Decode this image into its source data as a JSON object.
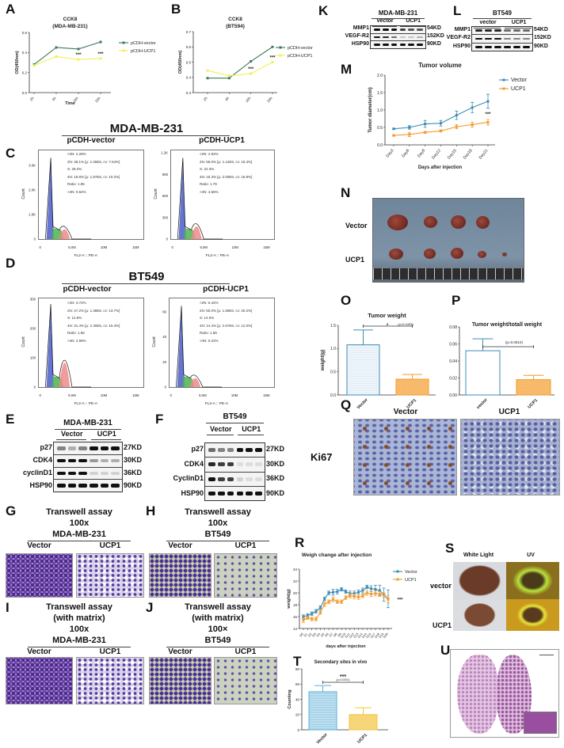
{
  "panel_labels": {
    "A": "A",
    "B": "B",
    "C": "C",
    "D": "D",
    "E": "E",
    "F": "F",
    "G": "G",
    "H": "H",
    "I": "I",
    "J": "J",
    "K": "K",
    "L": "L",
    "M": "M",
    "N": "N",
    "O": "O",
    "P": "P",
    "Q": "Q",
    "R": "R",
    "S": "S",
    "T": "T",
    "U": "U"
  },
  "flow": {
    "C": {
      "title": "MDA-MB-231",
      "xlabel": "FL2-A :: PE-A",
      "ylabel": "Count",
      "xticks": [
        "0",
        "5.0M",
        "10M",
        "15M"
      ],
      "left": {
        "subtitle": "pCDH-vector",
        "yticks": [
          "0",
          "1.0K",
          "2.0K",
          "3.0K"
        ],
        "stats": [
          "<2N: 2.28%",
          "2N: 48.1%   [μ: 1.06E6, cv: 7.64%]",
          "S: 29.2%",
          "4N: 19.8%   [μ: 1.97E6, cv: 10.2%]",
          "Ratio: 1.85",
          ">4N: 0.64%"
        ]
      },
      "right": {
        "subtitle": "pCDH-UCP1",
        "yticks": [
          "0",
          "300",
          "600",
          "900",
          "1.2K"
        ],
        "stats": [
          "<2N: 2.92%",
          "2N: 55.0%   [μ: 1.12E6, cv: 15.4%]",
          "S: 22.3%",
          "4N: 16.3%   [μ: 2.00E6, cv: 18.9%]",
          "Ratio: 1.79",
          ">4N: 3.56%"
        ]
      }
    },
    "D": {
      "title": "BT549",
      "xlabel": "FL2-A :: PE-A",
      "ylabel": "Count",
      "xticks": [
        "0",
        "5.0M",
        "10M",
        "15M"
      ],
      "left": {
        "subtitle": "pCDH-vector",
        "yticks": [
          "0",
          "100",
          "200",
          "300"
        ],
        "stats": [
          "<2N: 3.72%",
          "2N: 47.2%   [μ: 1.38E6, cv: 13.7%]",
          "S: 12.8%",
          "4N: 31.4%   [μ: 2.30E6, cv: 16.4%]",
          "Ratio: 1.66",
          ">4N: 4.99%"
        ]
      },
      "right": {
        "subtitle": "pCDH-UCP1",
        "yticks": [
          "0",
          "20",
          "40",
          "60"
        ],
        "stats": [
          "<2N: 6.44%",
          "2N: 60.0%   [μ: 1.59E6, cv: 20.2%]",
          "S: 14.0%",
          "4N: 14.4%   [μ: 2.67E6, cv: 12.0%]",
          "Ratio: 1.68",
          ">4N: 5.22%"
        ]
      }
    }
  },
  "blots": {
    "E": {
      "title": "MDA-MB-231",
      "groups": [
        "Vector",
        "UCP1"
      ],
      "proteins": [
        "p27",
        "CDK4",
        "cyclinD1",
        "HSP90"
      ],
      "sizes": [
        "27KD",
        "30KD",
        "36KD",
        "90KD"
      ]
    },
    "F": {
      "title": "BT549",
      "groups": [
        "Vector",
        "UCP1"
      ],
      "proteins": [
        "p27",
        "CDK4",
        "CyclinD1",
        "HSP90"
      ],
      "sizes": [
        "27KD",
        "30KD",
        "36KD",
        "90KD"
      ]
    },
    "K": {
      "title": "MDA-MB-231",
      "groups": [
        "vector",
        "UCP1"
      ],
      "proteins": [
        "MMP1",
        "VEGF-R2",
        "HSP90"
      ],
      "sizes": [
        "54KD",
        "152KD",
        "90KD"
      ]
    },
    "L": {
      "title": "BT549",
      "groups": [
        "vector",
        "UCP1"
      ],
      "proteins": [
        "MMP1",
        "VEGF-R2",
        "HSP90"
      ],
      "sizes": [
        "54KD",
        "152KD",
        "90KD"
      ]
    }
  },
  "transwell": {
    "G": {
      "lines": [
        "Transwell assay",
        "100x"
      ],
      "cell": "MDA-MB-231",
      "groups": [
        "Vector",
        "UCP1"
      ]
    },
    "H": {
      "lines": [
        "Transwell assay",
        "100x"
      ],
      "cell": "BT549",
      "groups": [
        "Vector",
        "UCP1"
      ]
    },
    "I": {
      "lines": [
        "Transwell assay",
        "(with matrix)",
        "100x"
      ],
      "cell": "MDA-MB-231",
      "groups": [
        "Vector",
        "UCP1"
      ]
    },
    "J": {
      "lines": [
        "Transwell assay",
        "(with matrix)",
        "100×"
      ],
      "cell": "BT549",
      "groups": [
        "Vector",
        "UCP1"
      ]
    }
  },
  "tumor_photo": {
    "rows": [
      "Vector",
      "UCP1"
    ]
  },
  "ihc": {
    "stain": "Ki67",
    "groups": [
      "Vector",
      "UCP1"
    ]
  },
  "lung_photo": {
    "columns": [
      "White Light",
      "UV"
    ],
    "rows": [
      "vector",
      "UCP1"
    ]
  },
  "colors": {
    "vector_blue": "#3b8db5",
    "ucp1_orange": "#f39a2b",
    "cck_vector_green": "#3d7a5a",
    "cck_ucp1_yellow": "#f2ef5a"
  },
  "chart_data": [
    {
      "panel": "A",
      "type": "line",
      "title": "CCK8",
      "subtitle": "(MDA-MB-231)",
      "xlabel": "Time",
      "ylabel": "OD(450nm)",
      "categories": [
        "2h",
        "4h",
        "16h",
        "24h"
      ],
      "ylim": [
        0,
        0.6
      ],
      "yticks": [
        "0.0",
        "0.2",
        "0.4",
        "0.6"
      ],
      "legend": "right",
      "series": [
        {
          "name": "pCDH-vector",
          "color": "#3d7a5a",
          "values": [
            0.28,
            0.45,
            0.435,
            0.505
          ]
        },
        {
          "name": "pCDH-UCP1",
          "color": "#f2ef5a",
          "values": [
            0.27,
            0.36,
            0.33,
            0.34
          ]
        }
      ],
      "annotations": [
        {
          "x": "16h",
          "text": "***"
        },
        {
          "x": "24h",
          "text": "***"
        }
      ]
    },
    {
      "panel": "B",
      "type": "line",
      "title": "CCK8",
      "subtitle": "(BT594)",
      "xlabel": "",
      "ylabel": "OD(450nm)",
      "categories": [
        "2h",
        "4h",
        "16h",
        "24h"
      ],
      "ylim": [
        0.3,
        0.7
      ],
      "yticks": [
        "0.3",
        "0.4",
        "0.5",
        "0.6",
        "0.7"
      ],
      "legend": "right",
      "series": [
        {
          "name": "pCDH-vector",
          "color": "#3d7a5a",
          "values": [
            0.395,
            0.395,
            0.505,
            0.6
          ]
        },
        {
          "name": "pCDH-UCP1",
          "color": "#f2ef5a",
          "values": [
            0.445,
            0.41,
            0.425,
            0.5
          ]
        }
      ],
      "annotations": [
        {
          "x": "16h",
          "text": "***"
        },
        {
          "x": "24h",
          "text": "***"
        }
      ]
    },
    {
      "panel": "M",
      "type": "line",
      "title": "Tumor volume",
      "xlabel": "Days after injection",
      "ylabel": "Tumor diameter(cm)",
      "categories": [
        "Day3",
        "Day6",
        "Day9",
        "Day12",
        "Day15",
        "Day18",
        "Day21"
      ],
      "ylim": [
        0,
        2
      ],
      "yticks": [
        "0.0",
        "0.5",
        "1.0",
        "1.5",
        "2.0"
      ],
      "legend": "top-right",
      "series": [
        {
          "name": "Vector",
          "color": "#3b8db5",
          "values": [
            0.46,
            0.5,
            0.6,
            0.62,
            0.85,
            1.07,
            1.25
          ],
          "errors": [
            0.02,
            0.05,
            0.1,
            0.08,
            0.12,
            0.15,
            0.2
          ]
        },
        {
          "name": "UCP1",
          "color": "#f39a2b",
          "values": [
            0.27,
            0.3,
            0.36,
            0.4,
            0.52,
            0.58,
            0.65
          ],
          "errors": [
            0.02,
            0.06,
            0.03,
            0.03,
            0.06,
            0.07,
            0.08
          ]
        }
      ],
      "annotations": [
        {
          "x": "Day21",
          "text": "***"
        }
      ]
    },
    {
      "panel": "O",
      "type": "bar",
      "title": "Tumor weight",
      "ylabel": "weight(g)",
      "categories": [
        "Vector",
        "UCP1"
      ],
      "values": [
        1.08,
        0.34
      ],
      "errors": [
        0.32,
        0.1
      ],
      "ylim": [
        0,
        1.5
      ],
      "yticks": [
        "0.0",
        "0.5",
        "1.0",
        "1.5"
      ],
      "colors": [
        "#3b8db5",
        "#f39a2b"
      ],
      "annotations": [
        "*",
        "(p=0.0493)"
      ]
    },
    {
      "panel": "P",
      "type": "bar",
      "title": "Tumor weight/totall weight",
      "ylabel": "",
      "categories": [
        "vector",
        "UCP1"
      ],
      "values": [
        0.052,
        0.018
      ],
      "errors": [
        0.014,
        0.005
      ],
      "ylim": [
        0,
        0.08
      ],
      "yticks": [
        "0.00",
        "0.02",
        "0.04",
        "0.06",
        "0.08"
      ],
      "colors": [
        "#3b8db5",
        "#f39a2b"
      ],
      "annotations": [
        "(p=0.0510)"
      ]
    },
    {
      "panel": "R",
      "type": "line",
      "title": "Weigh change after injection",
      "xlabel": "days after injection",
      "ylabel": "weight(g)",
      "ylim": [
        14,
        24
      ],
      "yticks": [
        "14",
        "16",
        "18",
        "20",
        "22",
        "24"
      ],
      "legend": "top-right",
      "categories": [
        "D0",
        "D1",
        "D2",
        "D3",
        "D4",
        "D5",
        "D6",
        "D7",
        "D8",
        "D9",
        "D10",
        "D11",
        "D12",
        "D13",
        "D14",
        "D15",
        "D16",
        "D17",
        "D18",
        "D19",
        "D20"
      ],
      "series": [
        {
          "name": "Vector",
          "color": "#3b8db5",
          "values": [
            16,
            16.2,
            16.5,
            16.9,
            17.5,
            19,
            20,
            20.1,
            20.2,
            20.6,
            20.2,
            19.9,
            19.9,
            20.1,
            20.4,
            21,
            20.7,
            20.6,
            20.4,
            19.7,
            19.0
          ],
          "errors": [
            0.3,
            0.3,
            0.3,
            0.3,
            0.3,
            0.3,
            0.3,
            0.5,
            0.4,
            0.3,
            0.3,
            0.4,
            0.4,
            0.4,
            0.4,
            0.3,
            0.5,
            0.7,
            0.9,
            1.1,
            1.5
          ]
        },
        {
          "name": "UCP1",
          "color": "#f39a2b",
          "values": [
            15.4,
            15.8,
            15.6,
            15.6,
            16.7,
            18.1,
            18.5,
            18.9,
            18.5,
            18.5,
            19.2,
            19.5,
            19.4,
            19.3,
            19.5,
            20,
            19.8,
            19.9,
            19.8,
            19.6,
            18.9
          ],
          "errors": [
            0.4,
            0.3,
            0.3,
            0.3,
            0.3,
            0.4,
            0.3,
            0.4,
            0.3,
            0.3,
            0.3,
            0.4,
            0.4,
            0.4,
            0.3,
            0.4,
            0.4,
            0.4,
            0.4,
            0.4,
            0.6
          ]
        }
      ],
      "annotations": [
        {
          "x": "D20",
          "text": "***"
        }
      ]
    },
    {
      "panel": "T",
      "type": "bar",
      "title": "Secondary sites in vivo",
      "ylabel": "Counting",
      "categories": [
        "Vector",
        "UCP1"
      ],
      "values": [
        50,
        20
      ],
      "errors": [
        8,
        9
      ],
      "ylim": [
        0,
        80
      ],
      "yticks": [
        "0",
        "20",
        "40",
        "60",
        "80"
      ],
      "colors": [
        "#5ab0d4",
        "#f5c542"
      ],
      "annotations": [
        "***",
        "(p=0.0001)"
      ]
    }
  ]
}
